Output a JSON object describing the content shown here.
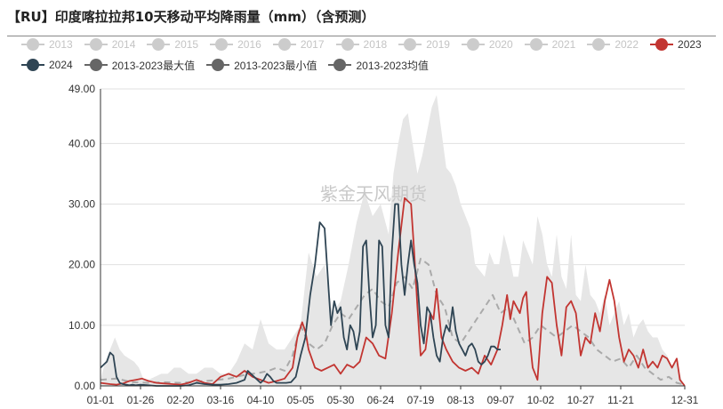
{
  "title": "【RU】印度喀拉拉邦10天移动平均降雨量（mm）（含预测）",
  "watermark": "紫金天风期货",
  "legend": [
    {
      "name": "2013",
      "color": "#cccccc",
      "active": false
    },
    {
      "name": "2014",
      "color": "#cccccc",
      "active": false
    },
    {
      "name": "2015",
      "color": "#cccccc",
      "active": false
    },
    {
      "name": "2016",
      "color": "#cccccc",
      "active": false
    },
    {
      "name": "2017",
      "color": "#cccccc",
      "active": false
    },
    {
      "name": "2018",
      "color": "#cccccc",
      "active": false
    },
    {
      "name": "2019",
      "color": "#cccccc",
      "active": false
    },
    {
      "name": "2020",
      "color": "#cccccc",
      "active": false
    },
    {
      "name": "2021",
      "color": "#cccccc",
      "active": false
    },
    {
      "name": "2022",
      "color": "#cccccc",
      "active": false
    },
    {
      "name": "2023",
      "color": "#c23531",
      "active": true
    },
    {
      "name": "2024",
      "color": "#2f4554",
      "active": true
    },
    {
      "name": "2013-2023最大值",
      "color": "#666666",
      "active": true
    },
    {
      "name": "2013-2023最小值",
      "color": "#666666",
      "active": true
    },
    {
      "name": "2013-2023均值",
      "color": "#666666",
      "active": true
    }
  ],
  "chart_data": {
    "type": "line",
    "x_ticks": [
      "01-01",
      "01-26",
      "02-20",
      "03-16",
      "04-10",
      "05-05",
      "05-30",
      "06-24",
      "07-19",
      "08-13",
      "09-07",
      "10-02",
      "10-27",
      "11-21",
      "12-31"
    ],
    "x_tick_days": [
      0,
      25,
      50,
      75,
      100,
      125,
      150,
      175,
      200,
      225,
      250,
      275,
      300,
      325,
      365
    ],
    "y_ticks": [
      "0.00",
      "10.00",
      "20.00",
      "30.00",
      "40.00",
      "49.00"
    ],
    "ylim": [
      0,
      49
    ],
    "xlim": [
      0,
      365
    ],
    "grid": true,
    "colors": {
      "s2023": "#c23531",
      "s2024": "#2f4554",
      "mean": "#aaaaaa",
      "band": "#e6e6e6"
    },
    "series": [
      {
        "name": "2023",
        "x": [
          0,
          6,
          10,
          14,
          18,
          22,
          26,
          30,
          35,
          40,
          45,
          50,
          55,
          60,
          65,
          70,
          75,
          80,
          85,
          90,
          95,
          100,
          105,
          110,
          115,
          120,
          123,
          126,
          128,
          130,
          134,
          138,
          142,
          146,
          150,
          154,
          158,
          162,
          166,
          170,
          174,
          178,
          182,
          186,
          190,
          192,
          194,
          196,
          198,
          200,
          203,
          206,
          208,
          210,
          213,
          216,
          220,
          224,
          228,
          232,
          236,
          240,
          244,
          248,
          251,
          254,
          256,
          258,
          260,
          262,
          264,
          266,
          268,
          270,
          273,
          276,
          279,
          282,
          285,
          288,
          291,
          294,
          297,
          300,
          303,
          306,
          309,
          312,
          315,
          318,
          321,
          324,
          327,
          330,
          333,
          336,
          339,
          342,
          345,
          348,
          351,
          354,
          357,
          360,
          362,
          365
        ],
        "y": [
          0.5,
          0.3,
          0.2,
          0.4,
          0.8,
          1.0,
          1.2,
          0.8,
          0.5,
          0.4,
          0.3,
          0.2,
          0.5,
          1.0,
          0.5,
          0.3,
          1.5,
          2.0,
          1.5,
          2.5,
          1.5,
          1.0,
          0.5,
          0.8,
          1.2,
          3.0,
          8.0,
          10.5,
          9.0,
          6.0,
          3.0,
          2.5,
          3.0,
          3.5,
          2.0,
          3.5,
          3.0,
          4.0,
          8.0,
          7.0,
          5.0,
          4.5,
          12.0,
          22.0,
          31.0,
          30.5,
          30.0,
          22.0,
          13.0,
          5.0,
          6.0,
          12.0,
          11.0,
          16.0,
          8.0,
          6.0,
          4.0,
          3.0,
          2.5,
          3.0,
          2.0,
          5.0,
          3.5,
          6.0,
          10.0,
          15.0,
          11.0,
          14.0,
          13.0,
          12.0,
          14.5,
          15.5,
          8.0,
          3.0,
          1.0,
          12.0,
          18.0,
          17.0,
          10.0,
          5.0,
          13.0,
          14.0,
          12.0,
          5.0,
          8.0,
          7.0,
          12.0,
          9.0,
          14.0,
          17.5,
          14.0,
          8.0,
          4.0,
          6.0,
          5.0,
          3.0,
          6.0,
          3.0,
          4.0,
          3.0,
          5.0,
          4.5,
          3.0,
          4.5,
          1.0,
          0.0
        ]
      },
      {
        "name": "2024",
        "x": [
          0,
          2,
          4,
          6,
          8,
          10,
          12,
          14,
          16,
          18,
          20,
          22,
          25,
          30,
          35,
          40,
          45,
          50,
          55,
          60,
          65,
          70,
          75,
          80,
          85,
          90,
          92,
          94,
          96,
          98,
          100,
          102,
          104,
          106,
          108,
          110,
          113,
          116,
          119,
          122,
          125,
          128,
          131,
          134,
          137,
          140,
          142,
          144,
          146,
          148,
          150,
          152,
          154,
          156,
          158,
          160,
          162,
          164,
          166,
          168,
          170,
          172,
          174,
          176,
          178,
          180,
          182,
          184,
          186,
          188,
          190,
          192,
          194,
          196,
          198,
          200,
          202,
          204,
          206,
          208,
          210,
          212,
          214,
          216,
          218,
          220,
          222,
          224,
          226,
          228,
          230,
          232,
          234,
          236,
          238,
          240,
          242,
          244,
          246,
          248,
          250
        ],
        "y": [
          3.0,
          3.5,
          4.0,
          5.5,
          5.0,
          1.5,
          0.5,
          0.3,
          0.2,
          0.1,
          0.2,
          0.1,
          0.2,
          0.1,
          0.0,
          0.0,
          0.0,
          0.0,
          0.1,
          0.5,
          0.3,
          0.2,
          0.2,
          0.3,
          0.5,
          1.0,
          2.5,
          2.0,
          1.5,
          1.0,
          0.5,
          1.0,
          2.0,
          1.5,
          0.8,
          0.5,
          0.5,
          0.5,
          0.6,
          1.5,
          5.0,
          8.0,
          15.0,
          20.0,
          27.0,
          26.0,
          18.0,
          10.0,
          14.0,
          12.0,
          13.0,
          8.0,
          6.0,
          10.0,
          9.0,
          6.0,
          9.0,
          23.0,
          24.0,
          15.0,
          8.0,
          10.0,
          24.0,
          23.0,
          10.0,
          8.0,
          22.0,
          30.0,
          30.0,
          20.0,
          15.0,
          20.0,
          24.0,
          20.0,
          17.0,
          10.0,
          7.0,
          13.0,
          12.0,
          8.0,
          5.0,
          4.0,
          8.0,
          10.0,
          9.0,
          13.0,
          9.0,
          7.0,
          6.0,
          5.0,
          6.5,
          7.0,
          6.0,
          4.0,
          3.5,
          4.0,
          5.0,
          6.5,
          6.5,
          6.0,
          6.0
        ]
      },
      {
        "name": "2013-2023最大值",
        "x": [
          0,
          3,
          6,
          9,
          12,
          15,
          18,
          21,
          24,
          27,
          30,
          34,
          38,
          42,
          46,
          50,
          55,
          60,
          65,
          70,
          75,
          80,
          85,
          90,
          95,
          100,
          105,
          110,
          115,
          120,
          125,
          130,
          135,
          140,
          145,
          150,
          155,
          160,
          165,
          170,
          175,
          180,
          183,
          186,
          189,
          192,
          195,
          198,
          201,
          204,
          207,
          210,
          213,
          216,
          219,
          222,
          225,
          228,
          231,
          234,
          237,
          240,
          243,
          246,
          249,
          252,
          255,
          258,
          261,
          264,
          267,
          270,
          273,
          276,
          279,
          282,
          285,
          288,
          291,
          294,
          297,
          300,
          303,
          306,
          309,
          312,
          315,
          318,
          321,
          324,
          327,
          330,
          333,
          336,
          339,
          342,
          345,
          348,
          351,
          354,
          357,
          360,
          363,
          365
        ],
        "y": [
          1,
          4,
          6,
          8,
          6,
          5,
          4.5,
          4,
          3,
          1,
          1,
          1.5,
          2,
          2,
          3,
          3,
          2,
          2,
          3,
          3,
          2,
          2,
          4,
          7,
          6,
          11,
          7,
          6,
          6,
          8,
          10,
          22,
          18,
          20,
          12,
          14,
          20,
          27,
          32,
          28,
          30,
          25,
          35,
          40,
          44,
          45,
          40,
          35,
          38,
          42,
          46,
          48,
          42,
          36,
          35,
          33,
          30,
          28,
          26,
          20,
          19,
          18,
          22,
          20,
          20,
          25,
          22,
          18,
          18,
          24,
          22,
          20,
          28,
          25,
          20,
          18,
          25,
          18,
          16,
          25,
          15,
          14,
          20,
          15,
          14,
          12,
          15,
          10,
          12,
          14,
          10,
          12,
          8,
          10,
          11,
          9,
          8,
          8,
          6,
          5,
          3,
          4,
          1,
          0
        ]
      },
      {
        "name": "2013-2023最小值",
        "x": [
          0,
          365
        ],
        "y": [
          0,
          0
        ]
      },
      {
        "name": "2013-2023均值",
        "x": [
          0,
          10,
          20,
          30,
          40,
          50,
          60,
          70,
          80,
          90,
          100,
          105,
          110,
          115,
          120,
          125,
          130,
          135,
          140,
          145,
          150,
          155,
          160,
          165,
          170,
          175,
          180,
          185,
          190,
          195,
          200,
          205,
          210,
          215,
          220,
          225,
          230,
          235,
          240,
          245,
          250,
          255,
          260,
          265,
          270,
          275,
          280,
          285,
          290,
          295,
          300,
          305,
          310,
          315,
          320,
          325,
          330,
          335,
          340,
          345,
          350,
          355,
          360,
          365
        ],
        "y": [
          1.0,
          1.2,
          0.6,
          0.5,
          0.6,
          0.5,
          0.7,
          0.9,
          1.2,
          1.8,
          2.2,
          2.5,
          3.0,
          2.5,
          5.0,
          10.0,
          7.0,
          6.0,
          7.0,
          10.0,
          12.0,
          11.0,
          13.0,
          15.0,
          16.0,
          14.0,
          13.0,
          17.0,
          18.0,
          16.0,
          21.0,
          20.0,
          15.0,
          13.0,
          8.0,
          7.0,
          9.0,
          11.0,
          13.0,
          15.0,
          12.0,
          13.0,
          10.0,
          7.0,
          8.0,
          10.0,
          9.0,
          8.0,
          9.0,
          10.0,
          9.0,
          8.0,
          6.0,
          5.0,
          4.0,
          4.5,
          3.0,
          5.0,
          3.0,
          2.0,
          1.0,
          1.5,
          0.5,
          0.2
        ]
      }
    ]
  }
}
